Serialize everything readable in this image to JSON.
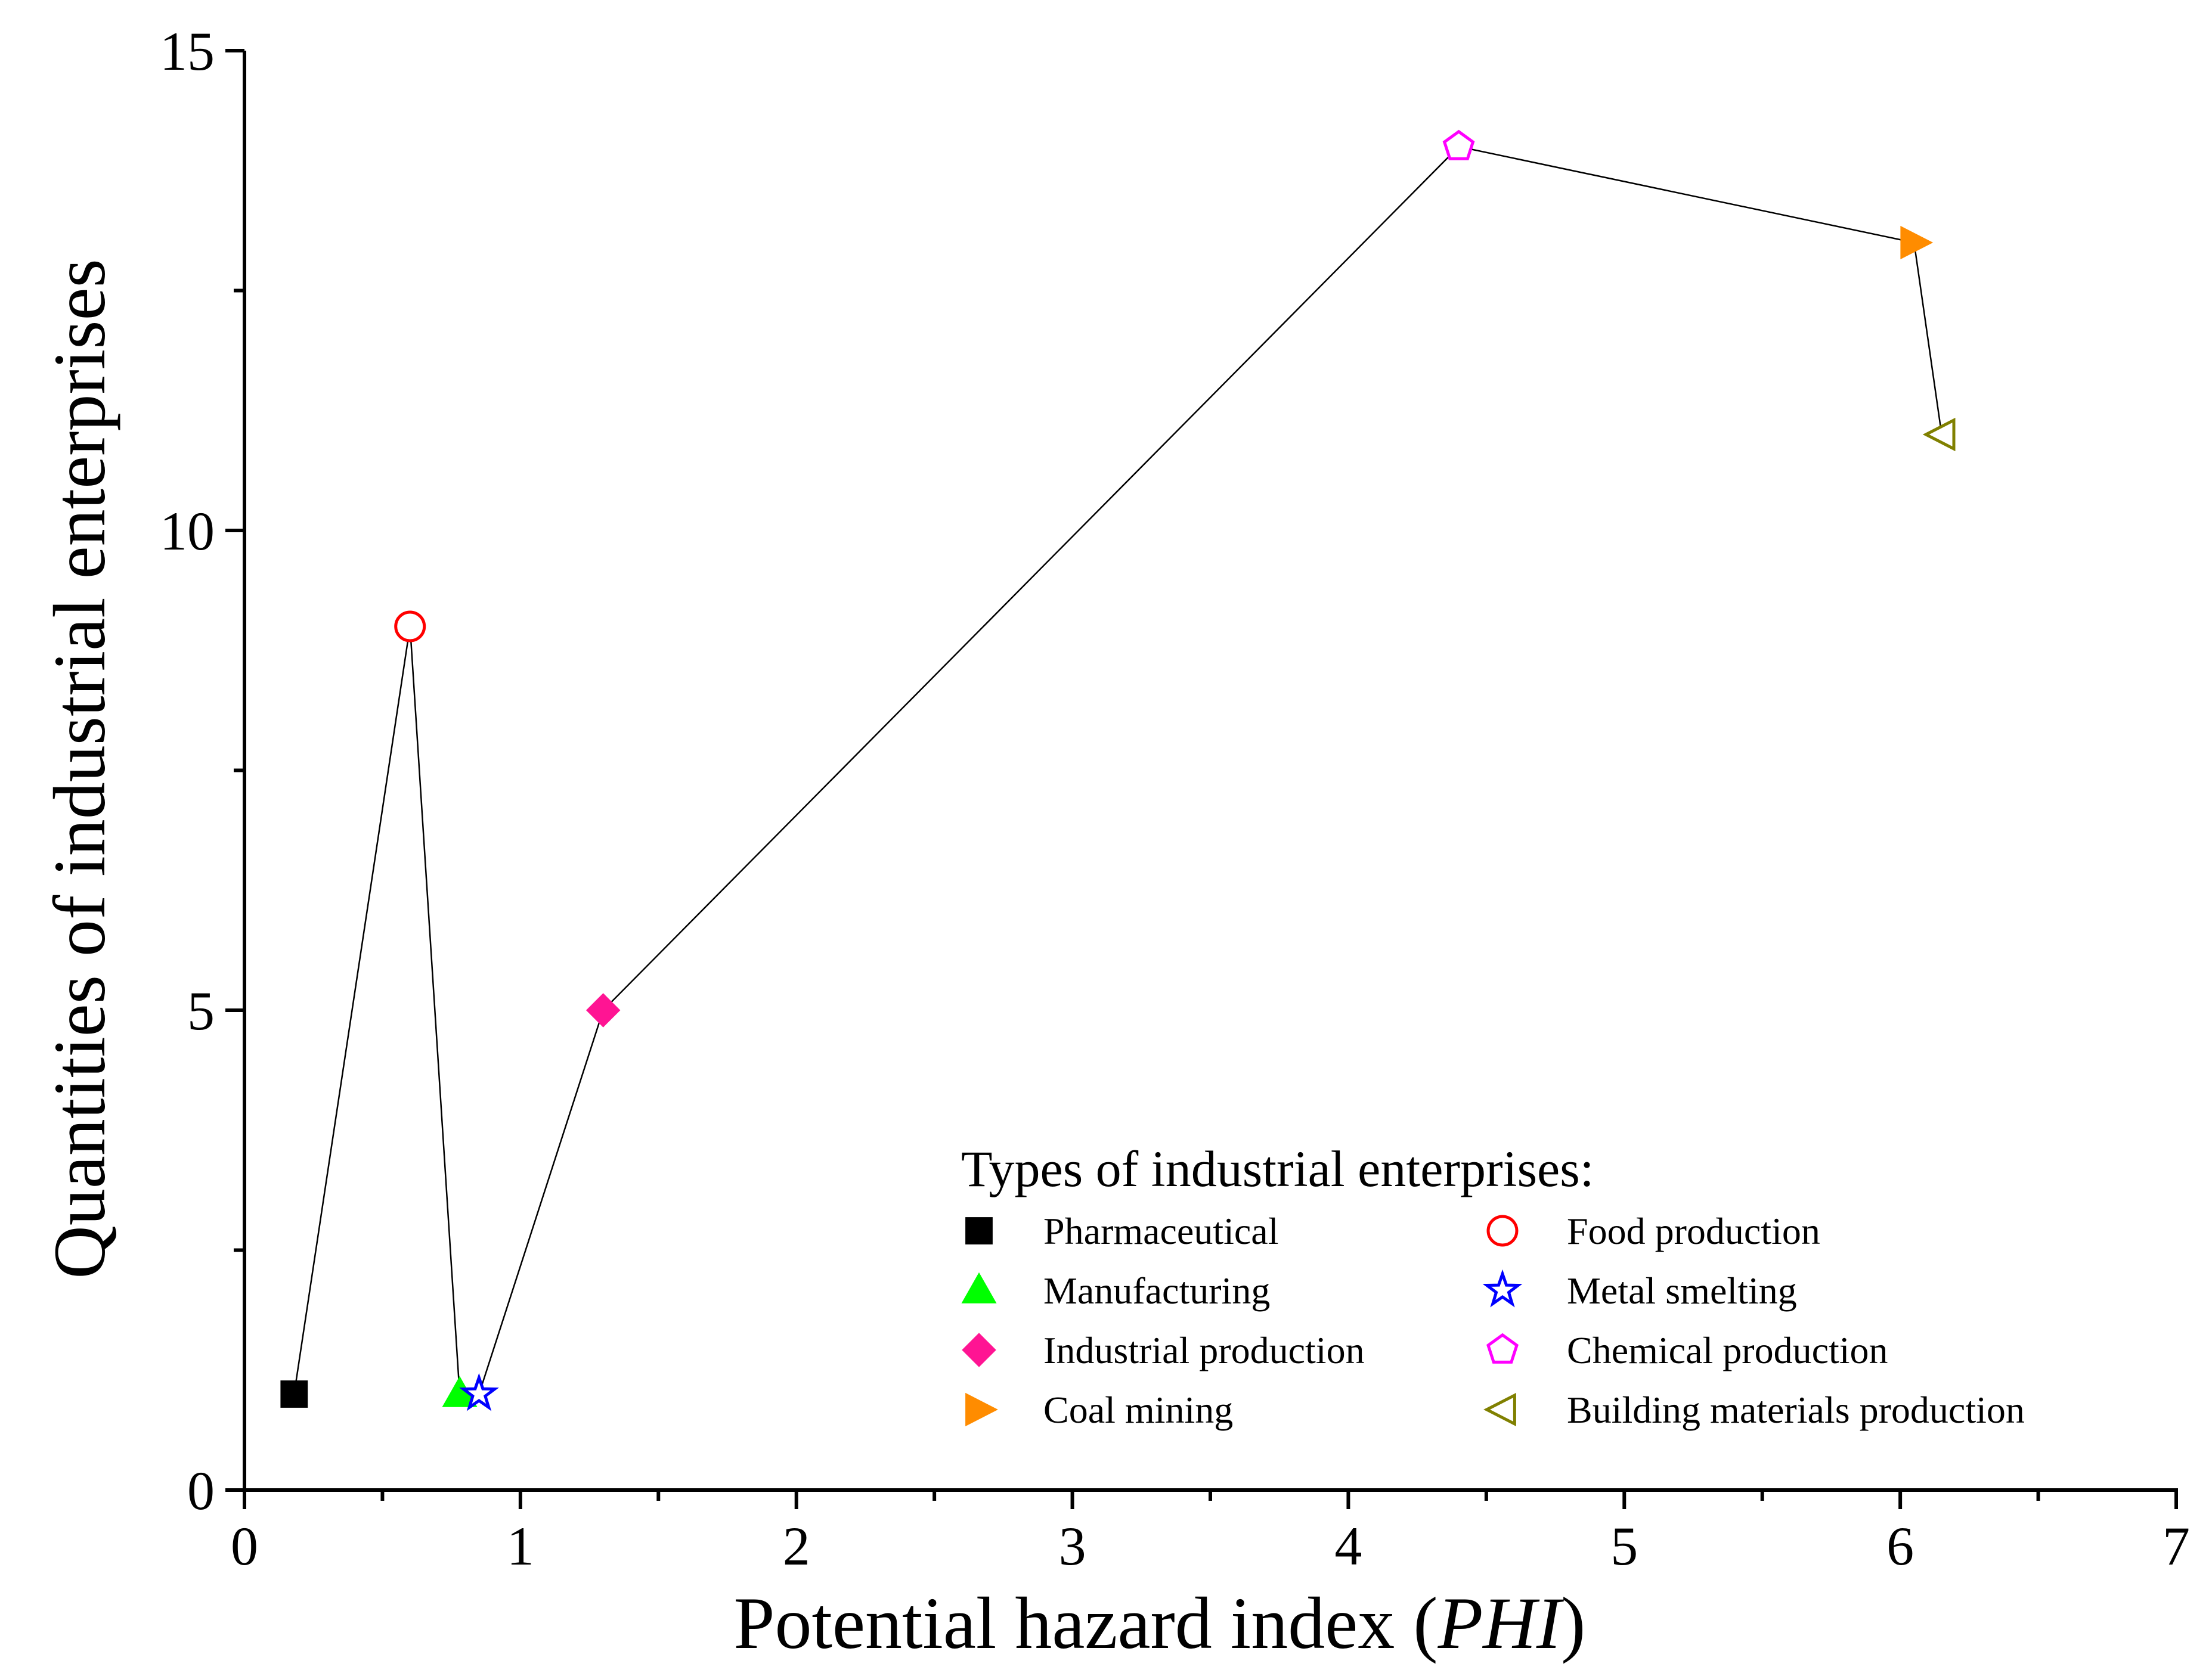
{
  "chart_data": {
    "type": "line",
    "title": "",
    "xlabel_prefix": "Potential hazard index (",
    "xlabel_italic": "PHI",
    "xlabel_suffix": ")",
    "ylabel": "Quantities of industrial enterprises",
    "xlim": [
      0,
      7
    ],
    "ylim": [
      0,
      15
    ],
    "xticks": [
      0,
      1,
      2,
      3,
      4,
      5,
      6,
      7
    ],
    "xtick_labels": [
      "0",
      "1",
      "2",
      "3",
      "4",
      "5",
      "6",
      "7"
    ],
    "yticks": [
      0,
      5,
      10,
      15
    ],
    "ytick_labels": [
      "0",
      "5",
      "10",
      "15"
    ],
    "x_minor_step": 0.5,
    "y_minor_step": 2.5,
    "legend_title": "Types of industrial enterprises:",
    "legend_position": "bottom-right",
    "series": [
      {
        "name": "Pharmaceutical",
        "x": 0.18,
        "y": 1,
        "marker": "square",
        "color": "#000000",
        "filled": true
      },
      {
        "name": "Food production",
        "x": 0.6,
        "y": 9,
        "marker": "circle",
        "color": "#ff0000",
        "filled": false
      },
      {
        "name": "Manufacturing",
        "x": 0.78,
        "y": 1,
        "marker": "triangle-up",
        "color": "#00ff00",
        "filled": true
      },
      {
        "name": "Metal smelting",
        "x": 0.85,
        "y": 1,
        "marker": "star",
        "color": "#0000ff",
        "filled": false
      },
      {
        "name": "Industrial production",
        "x": 1.3,
        "y": 5,
        "marker": "diamond",
        "color": "#ff1493",
        "filled": true
      },
      {
        "name": "Chemical production",
        "x": 4.4,
        "y": 14,
        "marker": "pentagon",
        "color": "#ff00ff",
        "filled": false
      },
      {
        "name": "Coal mining",
        "x": 6.05,
        "y": 13,
        "marker": "triangle-right",
        "color": "#ff8c00",
        "filled": true
      },
      {
        "name": "Building materials production",
        "x": 6.15,
        "y": 11,
        "marker": "triangle-left",
        "color": "#808000",
        "filled": false
      }
    ],
    "legend_order": [
      [
        "Pharmaceutical",
        "Food production"
      ],
      [
        "Manufacturing",
        "Metal smelting"
      ],
      [
        "Industrial production",
        "Chemical production"
      ],
      [
        "Coal mining",
        "Building materials production"
      ]
    ]
  }
}
